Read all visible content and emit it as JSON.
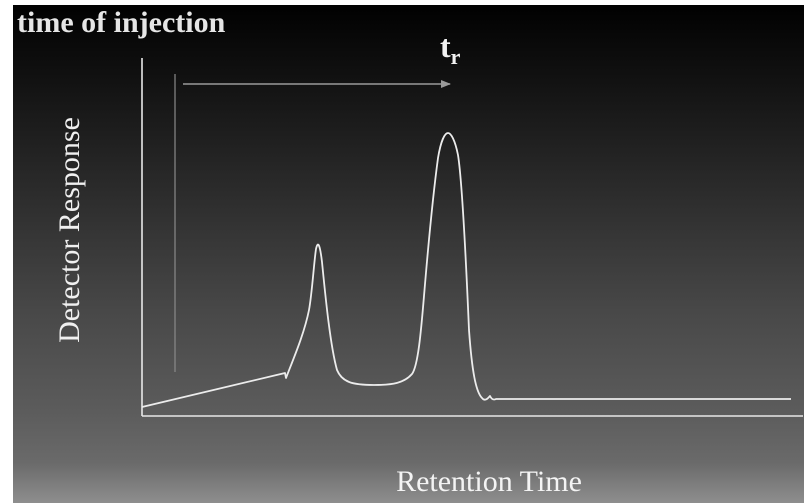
{
  "slide": {
    "title": "time of injection",
    "retention_label": "t",
    "retention_label_subscript": "r"
  },
  "axes": {
    "y_label": "Detector Response",
    "x_label": "Retention Time"
  },
  "colors": {
    "background_top": "#000000",
    "background_bottom": "#8e8e8e",
    "text": "#f0f0f0",
    "lines": "#e8e8e8",
    "marker_lines": "#9a9a9a"
  }
}
